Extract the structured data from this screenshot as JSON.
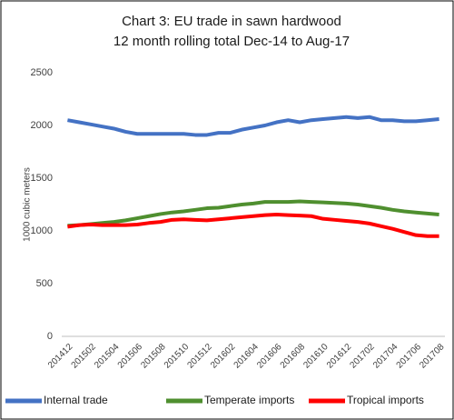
{
  "chart_data": {
    "type": "line",
    "title": "Chart 3: EU trade in sawn hardwood",
    "subtitle": "12 month rolling total Dec-14 to Aug-17",
    "y_label": "1000 cubic meters",
    "categories": [
      "201412",
      null,
      "201502",
      null,
      "201504",
      null,
      "201506",
      null,
      "201508",
      null,
      "201510",
      null,
      "201512",
      null,
      "201602",
      null,
      "201604",
      null,
      "201606",
      null,
      "201608",
      null,
      "201610",
      null,
      "201612",
      null,
      "201702",
      null,
      "201704",
      null,
      "201706",
      null,
      "201708"
    ],
    "series": [
      {
        "name": "Internal trade",
        "color": "#4472c4",
        "values": [
          2050,
          2030,
          2010,
          1990,
          1970,
          1940,
          1920,
          1920,
          1920,
          1920,
          1920,
          1910,
          1910,
          1930,
          1930,
          1960,
          1980,
          2000,
          2030,
          2050,
          2030,
          2050,
          2060,
          2070,
          2080,
          2070,
          2080,
          2050,
          2050,
          2040,
          2040,
          2050,
          2060
        ]
      },
      {
        "name": "Temperate imports",
        "color": "#4f8f2f",
        "values": [
          1050,
          1055,
          1065,
          1075,
          1085,
          1100,
          1120,
          1140,
          1160,
          1175,
          1185,
          1200,
          1215,
          1220,
          1235,
          1250,
          1260,
          1275,
          1275,
          1275,
          1280,
          1275,
          1270,
          1265,
          1260,
          1250,
          1235,
          1220,
          1200,
          1185,
          1175,
          1165,
          1155
        ]
      },
      {
        "name": "Tropical imports",
        "color": "#ff0000",
        "values": [
          1040,
          1055,
          1060,
          1055,
          1055,
          1055,
          1060,
          1075,
          1085,
          1105,
          1110,
          1105,
          1100,
          1110,
          1120,
          1130,
          1140,
          1150,
          1155,
          1150,
          1145,
          1140,
          1115,
          1105,
          1095,
          1085,
          1070,
          1045,
          1020,
          990,
          960,
          950,
          950
        ]
      }
    ],
    "ylim": [
      0,
      2500
    ],
    "yticks": [
      0,
      500,
      1000,
      1500,
      2000,
      2500
    ],
    "legend": "bottom",
    "grid": false
  }
}
